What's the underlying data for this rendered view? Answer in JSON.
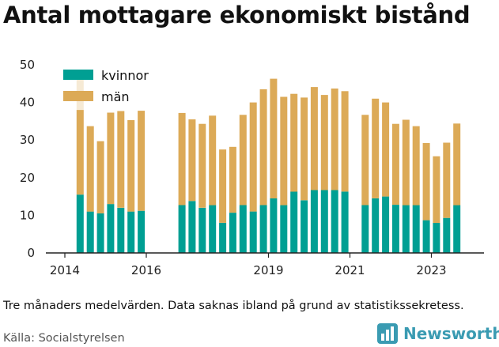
{
  "title": "Antal mottagare ekonomiskt bistånd",
  "note": "Tre månaders medelvärden. Data saknas ibland på grund av statistikssekretess.",
  "source": "Källa: Socialstyrelsen",
  "brand": {
    "name": "Newsworthy",
    "icon": "bar-chart-logo-icon"
  },
  "colors": {
    "kvinnor": "#009f93",
    "man": "#dcaa57",
    "axis": "#222222"
  },
  "chart_data": {
    "type": "bar",
    "stacked": true,
    "title": "Antal mottagare ekonomiskt bistånd",
    "xlabel": "",
    "ylabel": "",
    "ylim": [
      0,
      50
    ],
    "yticks": [
      0,
      10,
      20,
      30,
      40,
      50
    ],
    "xticks": [
      "2014",
      "2016",
      "2019",
      "2021",
      "2023"
    ],
    "legend_position": "top-left",
    "grid": false,
    "x": [
      "2014-04",
      "2014-07",
      "2014-10",
      "2015-01",
      "2015-04",
      "2015-07",
      "2015-10",
      "2016-10",
      "2017-01",
      "2017-04",
      "2017-07",
      "2017-10",
      "2018-01",
      "2018-04",
      "2018-07",
      "2018-10",
      "2019-01",
      "2019-04",
      "2019-07",
      "2019-10",
      "2020-01",
      "2020-04",
      "2020-07",
      "2020-10",
      "2021-04",
      "2021-07",
      "2021-10",
      "2022-01",
      "2022-04",
      "2022-07",
      "2022-10",
      "2023-01",
      "2023-04",
      "2023-07"
    ],
    "series": [
      {
        "name": "kvinnor",
        "values": [
          15.5,
          11,
          10.5,
          13,
          12,
          11,
          11.2,
          12.7,
          13.8,
          12,
          12.7,
          8,
          10.7,
          12.7,
          11,
          12.7,
          14.5,
          12.7,
          16.3,
          14,
          16.7,
          16.7,
          16.7,
          16.3,
          12.7,
          14.5,
          15,
          12.8,
          12.7,
          12.7,
          8.7,
          8,
          9.3,
          12.7
        ]
      },
      {
        "name": "män",
        "values": [
          22.5,
          22.7,
          19.2,
          24.3,
          25.7,
          24.3,
          26.6,
          24.5,
          21.7,
          22.3,
          23.8,
          19.5,
          17.5,
          24,
          29,
          30.8,
          31.8,
          28.8,
          26,
          27.3,
          27.4,
          25.3,
          27,
          26.7,
          24,
          26.5,
          25,
          21.5,
          22.7,
          21,
          20.5,
          17.7,
          20,
          21.7
        ]
      }
    ],
    "partial_bar": {
      "x": "2014-04",
      "kvinnor": 15.5,
      "man_visible_max": 46
    }
  }
}
